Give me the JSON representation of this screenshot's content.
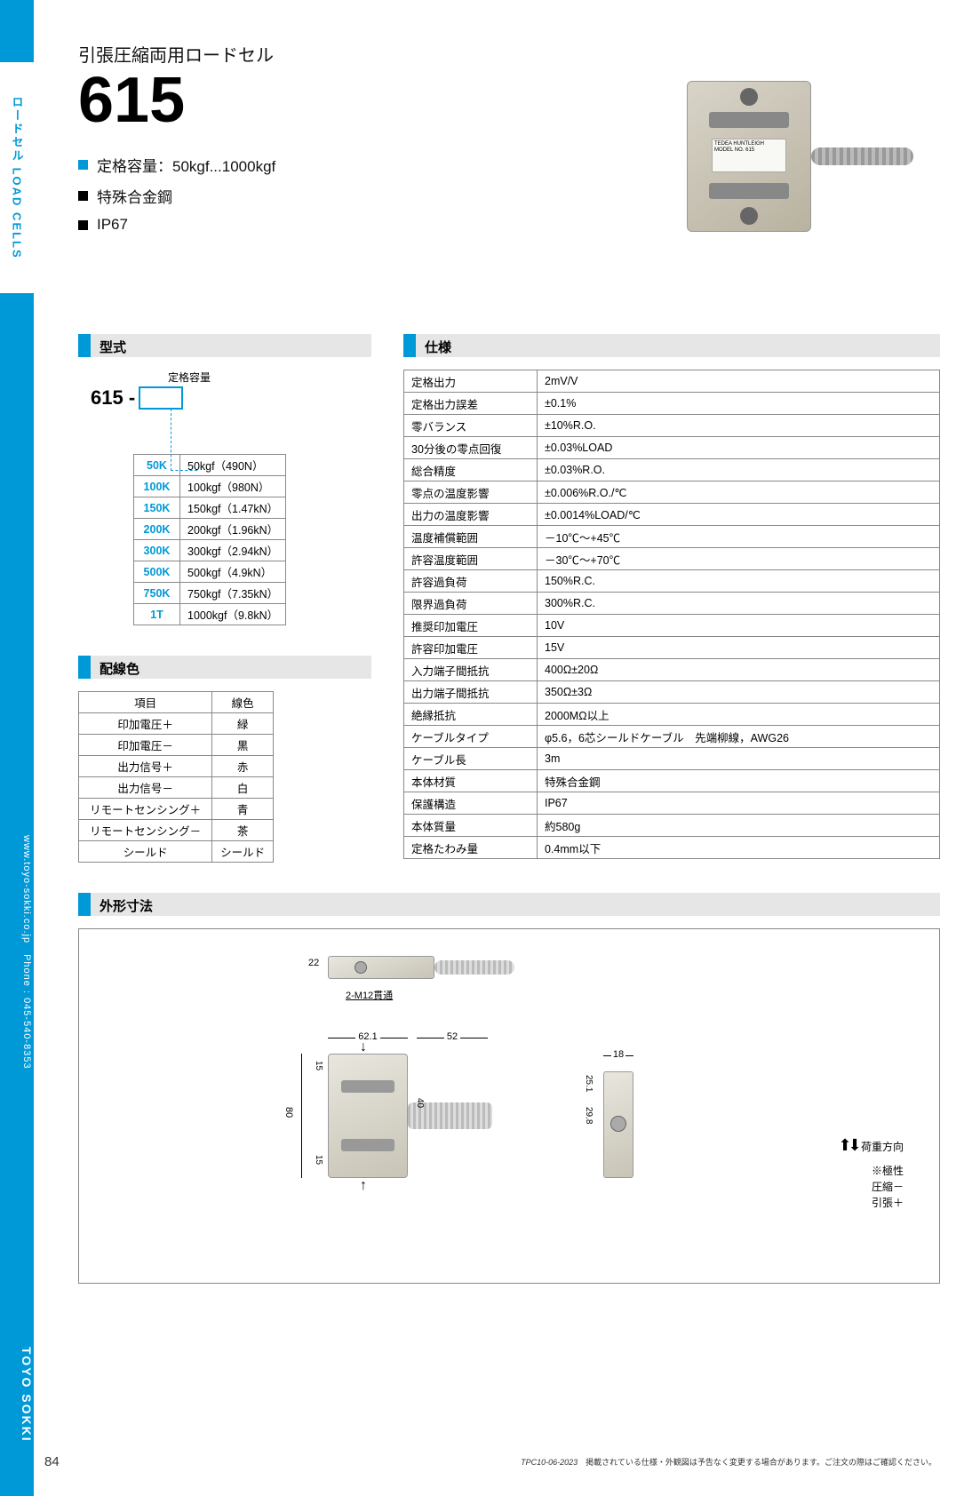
{
  "sidebar": {
    "tab_label": "ロードセル  LOAD CELLS",
    "vertical_info": "www.toyo-sokki.co.jp　Phone : 045-540-8353",
    "brand": "TOYO SOKKI"
  },
  "page_number": "84",
  "header": {
    "subtitle": "引張圧縮両用ロードセル",
    "model_number": "615",
    "features": [
      "定格容量：50kgf...1000kgf",
      "特殊合金鋼",
      "IP67"
    ],
    "img_label": "TEDEA HUNTLEIGH\nMODEL NO. 615"
  },
  "model_section": {
    "heading": "型式",
    "caption": "定格容量",
    "prefix": "615 -",
    "capacities": [
      {
        "code": "50K",
        "desc": "50kgf（490N）"
      },
      {
        "code": "100K",
        "desc": "100kgf（980N）"
      },
      {
        "code": "150K",
        "desc": "150kgf（1.47kN）"
      },
      {
        "code": "200K",
        "desc": "200kgf（1.96kN）"
      },
      {
        "code": "300K",
        "desc": "300kgf（2.94kN）"
      },
      {
        "code": "500K",
        "desc": "500kgf（4.9kN）"
      },
      {
        "code": "750K",
        "desc": "750kgf（7.35kN）"
      },
      {
        "code": "1T",
        "desc": "1000kgf（9.8kN）"
      }
    ]
  },
  "wiring_section": {
    "heading": "配線色",
    "headers": [
      "項目",
      "線色"
    ],
    "rows": [
      [
        "印加電圧＋",
        "緑"
      ],
      [
        "印加電圧－",
        "黒"
      ],
      [
        "出力信号＋",
        "赤"
      ],
      [
        "出力信号－",
        "白"
      ],
      [
        "リモートセンシング＋",
        "青"
      ],
      [
        "リモートセンシング－",
        "茶"
      ],
      [
        "シールド",
        "シールド"
      ]
    ]
  },
  "spec_section": {
    "heading": "仕様",
    "rows": [
      [
        "定格出力",
        "2mV/V"
      ],
      [
        "定格出力誤差",
        "±0.1%"
      ],
      [
        "零バランス",
        "±10%R.O."
      ],
      [
        "30分後の零点回復",
        "±0.03%LOAD"
      ],
      [
        "総合精度",
        "±0.03%R.O."
      ],
      [
        "零点の温度影響",
        "±0.006%R.O./℃"
      ],
      [
        "出力の温度影響",
        "±0.0014%LOAD/℃"
      ],
      [
        "温度補償範囲",
        "－10℃～+45℃"
      ],
      [
        "許容温度範囲",
        "－30℃～+70℃"
      ],
      [
        "許容過負荷",
        "150%R.C."
      ],
      [
        "限界過負荷",
        "300%R.C."
      ],
      [
        "推奨印加電圧",
        "10V"
      ],
      [
        "許容印加電圧",
        "15V"
      ],
      [
        "入力端子間抵抗",
        "400Ω±20Ω"
      ],
      [
        "出力端子間抵抗",
        "350Ω±3Ω"
      ],
      [
        "絶縁抵抗",
        "2000MΩ以上"
      ],
      [
        "ケーブルタイプ",
        "φ5.6，6芯シールドケーブル　先端柳線，AWG26"
      ],
      [
        "ケーブル長",
        "3m"
      ],
      [
        "本体材質",
        "特殊合金鋼"
      ],
      [
        "保護構造",
        "IP67"
      ],
      [
        "本体質量",
        "約580g"
      ],
      [
        "定格たわみ量",
        "0.4mm以下"
      ]
    ]
  },
  "dim_section": {
    "heading": "外形寸法",
    "labels": {
      "thread": "2-M12貫通",
      "d22": "22",
      "d62": "62.1",
      "d52": "52",
      "d18": "18",
      "d15a": "15",
      "d15b": "15",
      "d40": "40",
      "d80": "80",
      "d29": "29.8",
      "d25": "25.1",
      "load_dir": "荷重方向",
      "polarity": "※極性",
      "comp": "圧縮－",
      "tens": "引張＋"
    }
  },
  "footer": {
    "code": "TPC10-06-2023",
    "note": "掲載されている仕様・外観図は予告なく変更する場合があります。ご注文の際はご確認ください。"
  },
  "colors": {
    "brand_blue": "#0099d8",
    "grey_bg": "#e6e6e6",
    "border": "#888888"
  }
}
